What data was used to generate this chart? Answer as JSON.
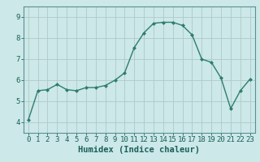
{
  "xlabel": "Humidex (Indice chaleur)",
  "ylabel": "",
  "x": [
    0,
    1,
    2,
    3,
    4,
    5,
    6,
    7,
    8,
    9,
    10,
    11,
    12,
    13,
    14,
    15,
    16,
    17,
    18,
    19,
    20,
    21,
    22,
    23
  ],
  "y": [
    4.1,
    5.5,
    5.55,
    5.8,
    5.55,
    5.5,
    5.65,
    5.65,
    5.75,
    6.0,
    6.35,
    7.55,
    8.25,
    8.7,
    8.75,
    8.75,
    8.6,
    8.15,
    7.0,
    6.85,
    6.1,
    4.65,
    5.5,
    6.05
  ],
  "line_color": "#2e7d6e",
  "marker": "D",
  "marker_size": 2,
  "line_width": 1.0,
  "bg_color": "#cce8e8",
  "grid_color": "#b0c8c8",
  "ylim": [
    3.5,
    9.5
  ],
  "xlim": [
    -0.5,
    23.5
  ],
  "yticks": [
    4,
    5,
    6,
    7,
    8,
    9
  ],
  "xticks": [
    0,
    1,
    2,
    3,
    4,
    5,
    6,
    7,
    8,
    9,
    10,
    11,
    12,
    13,
    14,
    15,
    16,
    17,
    18,
    19,
    20,
    21,
    22,
    23
  ],
  "xtick_labels": [
    "0",
    "1",
    "2",
    "3",
    "4",
    "5",
    "6",
    "7",
    "8",
    "9",
    "10",
    "11",
    "12",
    "13",
    "14",
    "15",
    "16",
    "17",
    "18",
    "19",
    "20",
    "21",
    "22",
    "23"
  ],
  "tick_fontsize": 6.5,
  "xlabel_fontsize": 7.5,
  "xlabel_color": "#1a5f5a",
  "line_text_color": "#1a5f5a"
}
